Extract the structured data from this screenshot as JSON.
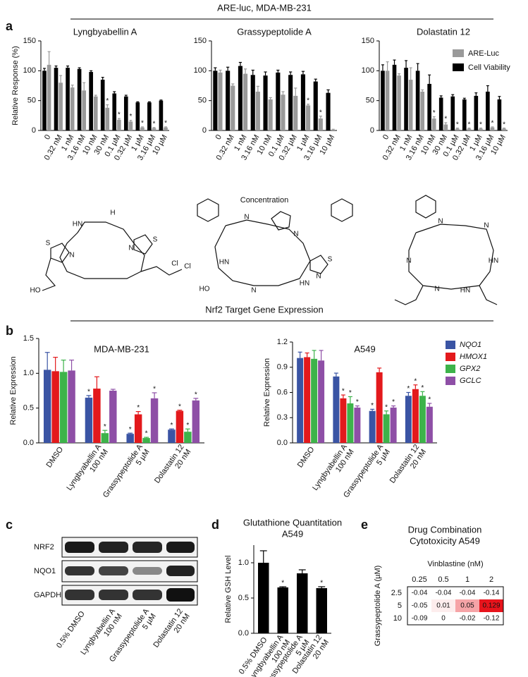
{
  "figure": {
    "top_title": "ARE-luc, MDA-MB-231",
    "mid_title": "Nrf2 Target Gene Expression",
    "letters": [
      "a",
      "b",
      "c",
      "d",
      "e"
    ]
  },
  "structures": [
    [
      "H",
      "HN",
      "S",
      "N",
      "N",
      "S",
      "HO",
      "Cl",
      "Cl"
    ],
    [
      "N",
      "N",
      "HN",
      "HO",
      "N",
      "HN",
      "S",
      "N"
    ],
    [
      "N",
      "N",
      "HN",
      "N",
      "N",
      "HN"
    ]
  ],
  "blot": {
    "rows": [
      "NRF2",
      "NQO1",
      "GAPDH"
    ],
    "lanes": [
      [
        "0.5% DMSO"
      ],
      [
        "Lyngbyabellin A",
        "100 nM"
      ],
      [
        "Grassypeptolide A",
        "5 µM"
      ],
      [
        "Dolastatin 12",
        "20 nM"
      ]
    ]
  },
  "chart_data": [
    {
      "type": "bar",
      "title": "Lyngbyabellin A",
      "y_label": "Relative Response (%)",
      "categories": [
        "0",
        "0.32 nM",
        "1 nM",
        "3.16 nM",
        "10 nM",
        "30 nM",
        "0.1 µM",
        "0.32 µM",
        "1 µM",
        "3.16 µM",
        "10 µM"
      ],
      "series": [
        {
          "name": "Cell Viability",
          "color": "#000000",
          "values": [
            100,
            105,
            105,
            103,
            98,
            85,
            62,
            57,
            47,
            47,
            50
          ],
          "errors": [
            4,
            3,
            3,
            2,
            2,
            4,
            3,
            2,
            1,
            1,
            1
          ]
        },
        {
          "name": "ARE-Luc",
          "color": "#9a9a9a",
          "values": [
            110,
            80,
            72,
            67,
            57,
            38,
            18,
            15,
            5,
            4,
            5
          ],
          "errors": [
            22,
            12,
            4,
            13,
            2,
            5,
            2,
            2,
            1,
            1,
            1
          ],
          "stars": [
            null,
            null,
            null,
            null,
            null,
            "*",
            "*",
            "*",
            "*",
            "*",
            "*"
          ]
        }
      ],
      "ylim": [
        0,
        150
      ],
      "yticks": [
        0,
        50,
        100,
        150
      ]
    },
    {
      "type": "bar",
      "title": "Grassypeptolide A",
      "x_label": "Concentration",
      "categories": [
        "0",
        "0.32 nM",
        "1 nM",
        "3.16 nM",
        "10 nM",
        "0.1 µM",
        "0.32 µM",
        "1 µM",
        "3.16 µM",
        "10 µM"
      ],
      "series": [
        {
          "name": "Cell Viability",
          "color": "#000000",
          "values": [
            100,
            100,
            108,
            93,
            92,
            97,
            93,
            94,
            82,
            63
          ],
          "errors": [
            5,
            6,
            6,
            8,
            6,
            4,
            5,
            5,
            4,
            5
          ]
        },
        {
          "name": "ARE-Luc",
          "color": "#9a9a9a",
          "values": [
            97,
            75,
            95,
            65,
            52,
            60,
            58,
            42,
            20,
            1
          ],
          "errors": [
            4,
            3,
            8,
            9,
            3,
            5,
            13,
            2,
            4,
            1
          ],
          "stars": [
            null,
            null,
            null,
            null,
            null,
            null,
            null,
            "*",
            "*",
            null
          ]
        }
      ],
      "ylim": [
        0,
        150
      ],
      "yticks": [
        0,
        50,
        100,
        150
      ]
    },
    {
      "type": "bar",
      "title": "Dolastatin 12",
      "legend": "upper right",
      "categories": [
        "0",
        "0.32 nM",
        "1 nM",
        "3.16 nM",
        "10 nM",
        "30 nM",
        "0.1 µM",
        "0.32 µM",
        "1 µM",
        "3.16 µM",
        "10 µM"
      ],
      "series": [
        {
          "name": "Cell Viability",
          "color": "#000000",
          "values": [
            100,
            110,
            105,
            100,
            78,
            55,
            57,
            52,
            58,
            65,
            52
          ],
          "errors": [
            10,
            8,
            12,
            12,
            15,
            3,
            3,
            2,
            5,
            10,
            5
          ]
        },
        {
          "name": "ARE-Luc",
          "color": "#9a9a9a",
          "values": [
            100,
            92,
            85,
            65,
            20,
            10,
            3,
            3,
            3,
            5,
            3
          ],
          "errors": [
            15,
            3,
            20,
            3,
            3,
            3,
            1,
            1,
            1,
            1,
            1
          ],
          "stars": [
            null,
            null,
            null,
            null,
            "*",
            "*",
            "*",
            "*",
            "*",
            "*",
            "*"
          ]
        }
      ],
      "ylim": [
        0,
        150
      ],
      "yticks": [
        0,
        50,
        100,
        150
      ]
    },
    {
      "type": "bar",
      "title": "MDA-MB-231",
      "y_label": "Relative Expression",
      "categories": [
        [
          "DMSO"
        ],
        [
          "Lyngbyabellin A",
          "100 nM"
        ],
        [
          "Grassypeptolide A",
          "5 µM"
        ],
        [
          "Dolastatin 12",
          "20 nM"
        ]
      ],
      "series": [
        {
          "name": "NQO1",
          "color": "#3a54a4",
          "values": [
            1.05,
            0.65,
            0.13,
            0.19
          ],
          "errors": [
            0.25,
            0.03,
            0.01,
            0.01
          ],
          "stars": [
            null,
            "*",
            "*",
            "*"
          ]
        },
        {
          "name": "HMOX1",
          "color": "#e3191c",
          "values": [
            1.03,
            0.78,
            0.41,
            0.46
          ],
          "errors": [
            0.2,
            0.17,
            0.04,
            0.01
          ],
          "stars": [
            null,
            null,
            "*",
            "*"
          ]
        },
        {
          "name": "GPX2",
          "color": "#3db34a",
          "values": [
            1.02,
            0.14,
            0.07,
            0.16
          ],
          "errors": [
            0.17,
            0.04,
            0.01,
            0.04
          ],
          "stars": [
            null,
            "*",
            "*",
            "*"
          ]
        },
        {
          "name": "GCLC",
          "color": "#8e4fa6",
          "values": [
            1.04,
            0.75,
            0.64,
            0.61
          ],
          "errors": [
            0.15,
            0.02,
            0.08,
            0.03
          ],
          "stars": [
            null,
            null,
            "*",
            "*"
          ]
        }
      ],
      "ylim": [
        0,
        1.5
      ],
      "yticks": [
        {
          "value": 0,
          "label": "0.0"
        },
        0.5,
        {
          "value": 1,
          "label": "1.0"
        },
        1.5
      ]
    },
    {
      "type": "bar",
      "title": "A549",
      "y_label": "Relative Expression",
      "legend": "right",
      "categories": [
        [
          "DMSO"
        ],
        [
          "Lyngbyabellin A",
          "100 nM"
        ],
        [
          "Grassypeptolide A",
          "5 µM"
        ],
        [
          "Dolastatin 12",
          "20 nM"
        ]
      ],
      "series": [
        {
          "name": "NQO1",
          "color": "#3a54a4",
          "values": [
            1.01,
            0.79,
            0.38,
            0.56
          ],
          "errors": [
            0.07,
            0.04,
            0.02,
            0.04
          ],
          "stars": [
            null,
            null,
            "*",
            "*"
          ]
        },
        {
          "name": "HMOX1",
          "color": "#e3191c",
          "values": [
            1.02,
            0.53,
            0.84,
            0.64
          ],
          "errors": [
            0.05,
            0.04,
            0.05,
            0.05
          ],
          "stars": [
            null,
            "*",
            null,
            "*"
          ]
        },
        {
          "name": "GPX2",
          "color": "#3db34a",
          "values": [
            1.0,
            0.47,
            0.34,
            0.56
          ],
          "errors": [
            0.1,
            0.08,
            0.04,
            0.05
          ],
          "stars": [
            null,
            "*",
            "*",
            "*"
          ]
        },
        {
          "name": "GCLC",
          "color": "#8e4fa6",
          "values": [
            0.98,
            0.42,
            0.42,
            0.43
          ],
          "errors": [
            0.12,
            0.02,
            0.02,
            0.04
          ],
          "stars": [
            null,
            "*",
            "*",
            "*"
          ]
        }
      ],
      "ylim": [
        0,
        1.2
      ],
      "yticks": [
        {
          "value": 0,
          "label": "0.0"
        },
        0.3,
        0.6,
        0.9,
        1.2
      ]
    },
    {
      "type": "bar",
      "title": [
        "Glutathione Quantitation",
        "A549"
      ],
      "y_label": "Relative GSH Level",
      "categories": [
        [
          "0.5% DMSO"
        ],
        [
          "Lyngbyabellin A",
          "100 nM"
        ],
        [
          "Grassypeptolide A",
          "5 µM"
        ],
        [
          "Dolastatin 12",
          "20 nM"
        ]
      ],
      "series": [
        {
          "name": "GSH",
          "color": "#000000",
          "values": [
            1.0,
            0.65,
            0.85,
            0.64
          ],
          "errors": [
            0.17,
            0.01,
            0.05,
            0.02
          ],
          "stars": [
            null,
            "*",
            null,
            "*"
          ]
        }
      ],
      "ylim": [
        0,
        1.25
      ],
      "yticks": [
        {
          "value": 0,
          "label": "0.0"
        },
        0.5,
        {
          "value": 1,
          "label": "1.0"
        }
      ]
    },
    {
      "type": "heatmap",
      "title": [
        "Drug Combination",
        "Cytotoxicity A549"
      ],
      "x_label": "Vinblastine (nM)",
      "y_label": "Grassypeptolide A (µM)",
      "x": [
        0.25,
        0.5,
        1,
        2
      ],
      "y": [
        2.5,
        5,
        10
      ],
      "values": [
        [
          -0.04,
          -0.04,
          -0.04,
          -0.14
        ],
        [
          -0.05,
          0.01,
          0.05,
          0.129
        ],
        [
          -0.09,
          0,
          -0.02,
          -0.12
        ]
      ],
      "color": "#e8141c"
    }
  ]
}
